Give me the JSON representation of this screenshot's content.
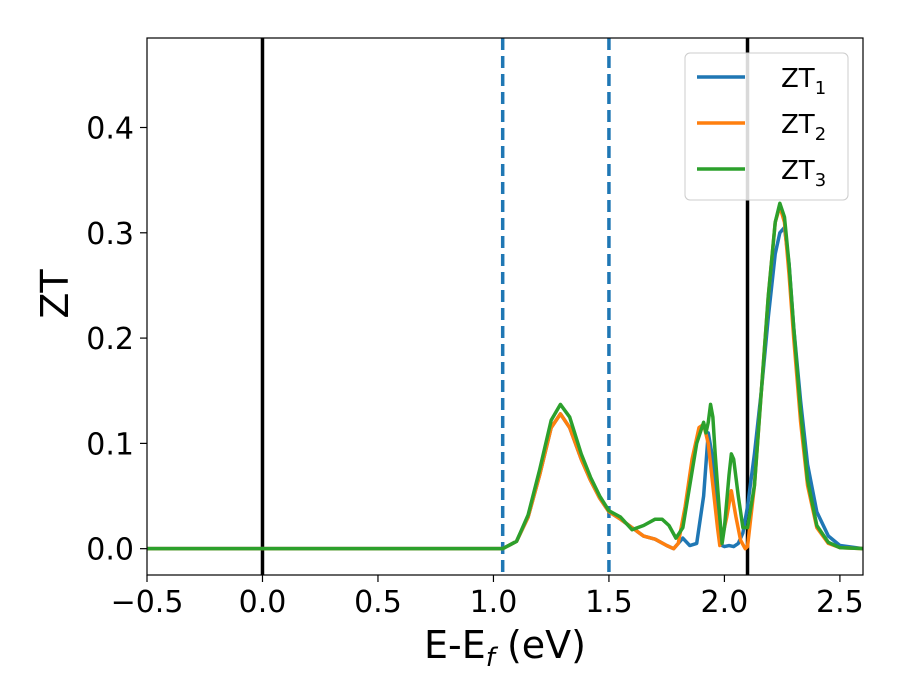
{
  "chart_data": {
    "type": "line",
    "xlabel": "E-E",
    "xlabel_sub": "f",
    "xlabel_suffix": " (eV)",
    "ylabel": "ZT",
    "xlim": [
      -0.5,
      2.6
    ],
    "ylim": [
      -0.025,
      0.485
    ],
    "xticks": [
      -0.5,
      0.0,
      0.5,
      1.0,
      1.5,
      2.0,
      2.5
    ],
    "xtick_labels": [
      "−0.5",
      "0.0",
      "0.5",
      "1.0",
      "1.5",
      "2.0",
      "2.5"
    ],
    "yticks": [
      0.0,
      0.1,
      0.2,
      0.3,
      0.4
    ],
    "ytick_labels": [
      "0.0",
      "0.1",
      "0.2",
      "0.3",
      "0.4"
    ],
    "grid": false,
    "legend_position": "top-right",
    "vlines": [
      {
        "x": 0.0,
        "style": "solid",
        "color": "#000000"
      },
      {
        "x": 2.1,
        "style": "solid",
        "color": "#000000"
      },
      {
        "x": 1.04,
        "style": "dashed",
        "color": "#1f77b4"
      },
      {
        "x": 1.5,
        "style": "dashed",
        "color": "#1f77b4"
      }
    ],
    "series": [
      {
        "name": "ZT",
        "name_sub": "1",
        "color": "#1f77b4",
        "x": [
          -0.5,
          0.5,
          1.0,
          1.04,
          1.1,
          1.15,
          1.2,
          1.25,
          1.29,
          1.33,
          1.38,
          1.42,
          1.46,
          1.5,
          1.55,
          1.6,
          1.65,
          1.7,
          1.75,
          1.78,
          1.82,
          1.85,
          1.88,
          1.91,
          1.93,
          1.95,
          1.97,
          1.98,
          1.99,
          2.0,
          2.02,
          2.04,
          2.06,
          2.08,
          2.1,
          2.13,
          2.16,
          2.19,
          2.22,
          2.24,
          2.26,
          2.28,
          2.3,
          2.33,
          2.36,
          2.4,
          2.45,
          2.5,
          2.6
        ],
        "y": [
          0.0,
          0.0,
          0.0,
          0.0,
          0.007,
          0.03,
          0.07,
          0.115,
          0.128,
          0.115,
          0.085,
          0.065,
          0.048,
          0.035,
          0.028,
          0.02,
          0.012,
          0.009,
          0.003,
          0.0,
          0.01,
          0.003,
          0.005,
          0.05,
          0.11,
          0.085,
          0.035,
          0.01,
          0.003,
          0.002,
          0.003,
          0.002,
          0.005,
          0.015,
          0.04,
          0.09,
          0.15,
          0.22,
          0.28,
          0.3,
          0.305,
          0.27,
          0.21,
          0.14,
          0.08,
          0.035,
          0.012,
          0.003,
          0.0
        ]
      },
      {
        "name": "ZT",
        "name_sub": "2",
        "color": "#ff7f0e",
        "x": [
          -0.5,
          0.5,
          1.0,
          1.04,
          1.1,
          1.15,
          1.2,
          1.25,
          1.29,
          1.33,
          1.38,
          1.42,
          1.46,
          1.5,
          1.55,
          1.6,
          1.65,
          1.7,
          1.75,
          1.78,
          1.8,
          1.83,
          1.86,
          1.89,
          1.91,
          1.93,
          1.95,
          1.97,
          1.98,
          1.99,
          2.01,
          2.03,
          2.05,
          2.07,
          2.09,
          2.1,
          2.13,
          2.16,
          2.19,
          2.22,
          2.24,
          2.26,
          2.28,
          2.3,
          2.33,
          2.36,
          2.4,
          2.45,
          2.5,
          2.6
        ],
        "y": [
          0.0,
          0.0,
          0.0,
          0.0,
          0.007,
          0.03,
          0.07,
          0.115,
          0.128,
          0.115,
          0.085,
          0.065,
          0.048,
          0.035,
          0.028,
          0.02,
          0.012,
          0.009,
          0.003,
          0.0,
          0.005,
          0.04,
          0.085,
          0.115,
          0.118,
          0.1,
          0.06,
          0.02,
          0.003,
          0.01,
          0.03,
          0.055,
          0.03,
          0.008,
          0.0,
          0.002,
          0.06,
          0.15,
          0.24,
          0.31,
          0.325,
          0.31,
          0.26,
          0.2,
          0.12,
          0.06,
          0.02,
          0.005,
          0.001,
          0.0
        ]
      },
      {
        "name": "ZT",
        "name_sub": "3",
        "color": "#2ca02c",
        "x": [
          -0.5,
          0.5,
          1.0,
          1.04,
          1.1,
          1.15,
          1.2,
          1.25,
          1.29,
          1.33,
          1.38,
          1.42,
          1.46,
          1.5,
          1.55,
          1.6,
          1.65,
          1.7,
          1.73,
          1.76,
          1.79,
          1.82,
          1.85,
          1.88,
          1.91,
          1.92,
          1.93,
          1.94,
          1.95,
          1.96,
          1.98,
          1.99,
          2.0,
          2.02,
          2.03,
          2.04,
          2.06,
          2.08,
          2.1,
          2.13,
          2.16,
          2.19,
          2.22,
          2.24,
          2.26,
          2.28,
          2.3,
          2.33,
          2.36,
          2.4,
          2.45,
          2.5,
          2.6
        ],
        "y": [
          0.0,
          0.0,
          0.0,
          0.0,
          0.007,
          0.032,
          0.075,
          0.122,
          0.137,
          0.125,
          0.09,
          0.068,
          0.05,
          0.036,
          0.03,
          0.018,
          0.022,
          0.028,
          0.028,
          0.022,
          0.01,
          0.02,
          0.06,
          0.1,
          0.12,
          0.11,
          0.12,
          0.137,
          0.125,
          0.09,
          0.03,
          0.005,
          0.02,
          0.07,
          0.09,
          0.085,
          0.05,
          0.02,
          0.02,
          0.06,
          0.15,
          0.24,
          0.31,
          0.328,
          0.315,
          0.27,
          0.21,
          0.13,
          0.065,
          0.022,
          0.006,
          0.001,
          0.0
        ]
      }
    ]
  }
}
